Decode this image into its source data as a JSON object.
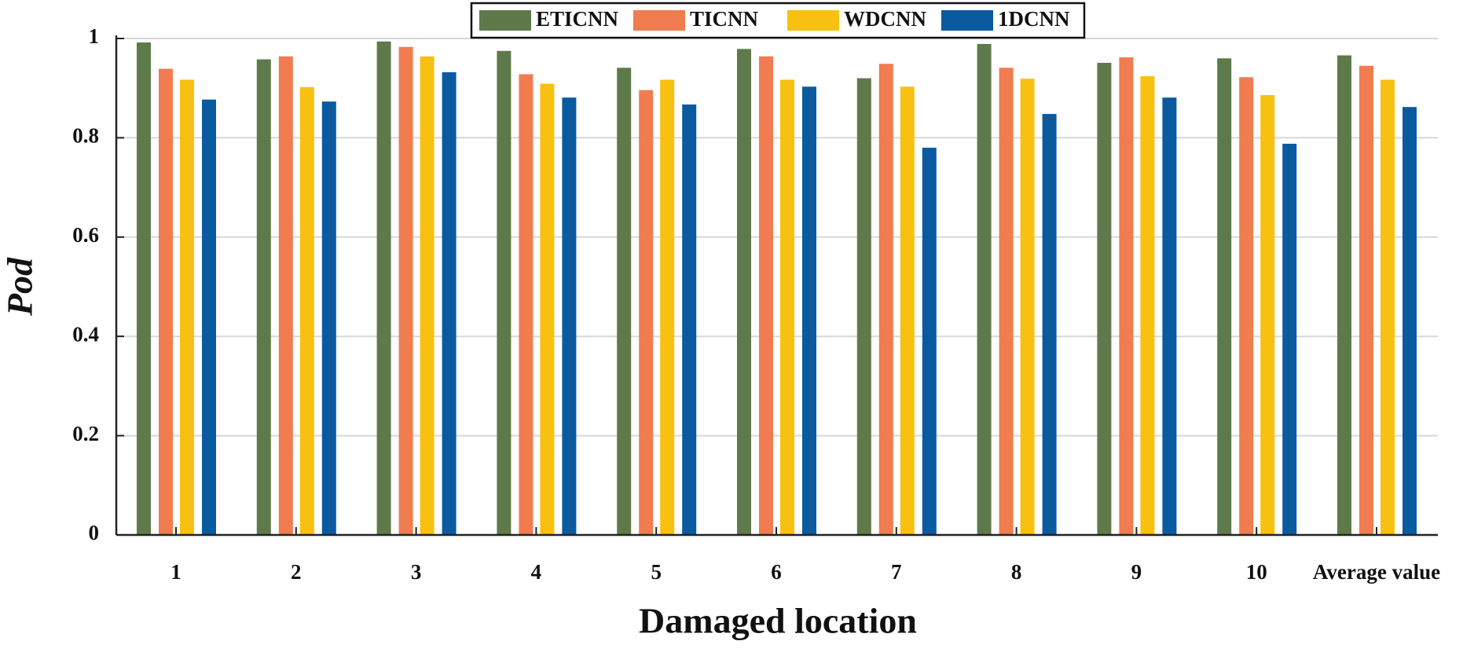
{
  "chart_data": {
    "type": "bar",
    "x_label": "Damaged location",
    "y_label": "Pod",
    "categories": [
      "1",
      "2",
      "3",
      "4",
      "5",
      "6",
      "7",
      "8",
      "9",
      "10",
      "Average value"
    ],
    "series": [
      {
        "name": "ETICNN",
        "color": "#5f7a4a",
        "values": [
          0.992,
          0.958,
          0.994,
          0.975,
          0.941,
          0.979,
          0.92,
          0.989,
          0.951,
          0.96,
          0.966
        ]
      },
      {
        "name": "TICNN",
        "color": "#f07c50",
        "values": [
          0.939,
          0.964,
          0.983,
          0.928,
          0.896,
          0.964,
          0.949,
          0.941,
          0.962,
          0.922,
          0.945
        ]
      },
      {
        "name": "WDCNN",
        "color": "#f8c010",
        "values": [
          0.917,
          0.902,
          0.964,
          0.909,
          0.917,
          0.917,
          0.903,
          0.919,
          0.924,
          0.886,
          0.917
        ]
      },
      {
        "name": "1DCNN",
        "color": "#0a5aa0",
        "values": [
          0.877,
          0.873,
          0.932,
          0.881,
          0.867,
          0.903,
          0.78,
          0.848,
          0.881,
          0.788,
          0.862
        ]
      }
    ],
    "ylim": [
      0,
      1
    ],
    "yticks": [
      0,
      0.2,
      0.4,
      0.6,
      0.8,
      1
    ],
    "grid": true,
    "legend": "top"
  }
}
